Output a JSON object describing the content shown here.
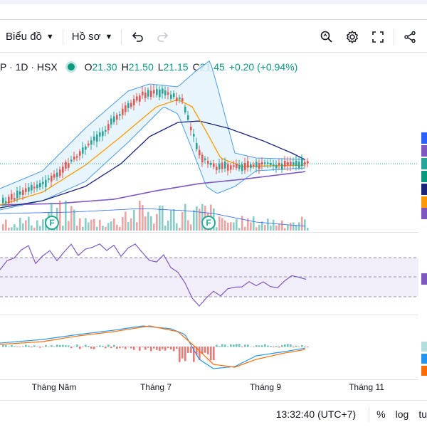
{
  "toolbar": {
    "chart_label": "Biểu đồ",
    "profile_label": "Hồ sơ",
    "icons": [
      "chevron-down-icon",
      "undo-icon",
      "redo-icon",
      "magnifier-icon",
      "gear-icon",
      "fullscreen-icon",
      "share-icon"
    ]
  },
  "legend": {
    "symbol": "P · 1D · HSX",
    "open_key": "O",
    "open": "21.30",
    "high_key": "H",
    "high": "21.50",
    "low_key": "L",
    "low": "21.15",
    "close_key": "C",
    "close": "21.45",
    "change": "+0.20 (+0.94%)"
  },
  "events": [
    "F",
    "F"
  ],
  "time_axis": [
    "Tháng Năm",
    "Tháng 7",
    "Tháng 9",
    "Tháng 11"
  ],
  "status": {
    "time": "13:32:40 (UTC+7)",
    "percent": "%",
    "log": "log",
    "auto": "tu"
  },
  "colors": {
    "up": "#26a69a",
    "down": "#ef5350",
    "bb_line": "#2962ff",
    "bb_fill": "#e3f2fd",
    "ma_fast": "#ff9800",
    "ma_mid": "#1a237e",
    "ma_slow": "#7e57c2",
    "rsi": "#7e57c2",
    "macd": "#2196f3",
    "signal": "#ff6d00"
  }
}
